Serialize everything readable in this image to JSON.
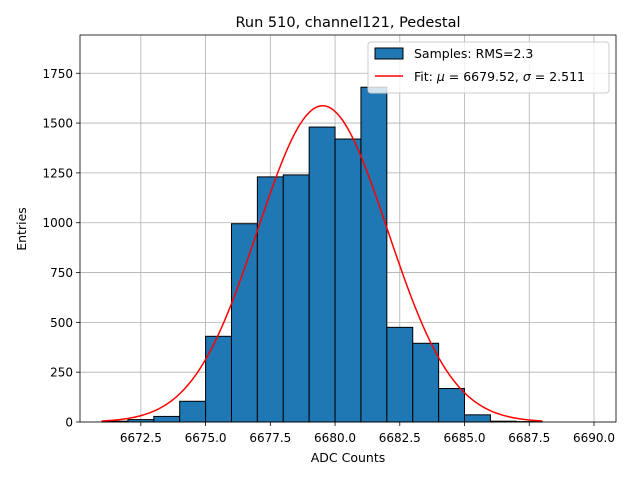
{
  "chart_data": {
    "type": "bar",
    "title": "Run 510, channel121, Pedestal",
    "xlabel": "ADC Counts",
    "ylabel": "Entries",
    "xlim": [
      6670.15,
      6690.85
    ],
    "ylim": [
      0,
      1942
    ],
    "x_ticks": [
      6672.5,
      6675.0,
      6677.5,
      6680.0,
      6682.5,
      6685.0,
      6687.5,
      6690.0
    ],
    "x_tick_labels": [
      "6672.5",
      "6675.0",
      "6677.5",
      "6680.0",
      "6682.5",
      "6685.0",
      "6687.5",
      "6690.0"
    ],
    "y_ticks": [
      0,
      250,
      500,
      750,
      1000,
      1250,
      1500,
      1750
    ],
    "y_tick_labels": [
      "0",
      "250",
      "500",
      "750",
      "1000",
      "1250",
      "1500",
      "1750"
    ],
    "grid": true,
    "bins": [
      {
        "left": 6671,
        "right": 6672,
        "count": 4
      },
      {
        "left": 6672,
        "right": 6673,
        "count": 12
      },
      {
        "left": 6673,
        "right": 6674,
        "count": 28
      },
      {
        "left": 6674,
        "right": 6675,
        "count": 104
      },
      {
        "left": 6675,
        "right": 6676,
        "count": 430
      },
      {
        "left": 6676,
        "right": 6677,
        "count": 995
      },
      {
        "left": 6677,
        "right": 6678,
        "count": 1230
      },
      {
        "left": 6678,
        "right": 6679,
        "count": 1240
      },
      {
        "left": 6679,
        "right": 6680,
        "count": 1480
      },
      {
        "left": 6680,
        "right": 6681,
        "count": 1420
      },
      {
        "left": 6681,
        "right": 6682,
        "count": 1680
      },
      {
        "left": 6682,
        "right": 6683,
        "count": 475
      },
      {
        "left": 6683,
        "right": 6684,
        "count": 395
      },
      {
        "left": 6684,
        "right": 6685,
        "count": 168
      },
      {
        "left": 6685,
        "right": 6686,
        "count": 36
      },
      {
        "left": 6686,
        "right": 6687,
        "count": 4
      },
      {
        "left": 6687,
        "right": 6688,
        "count": 2
      },
      {
        "left": 6688,
        "right": 6689,
        "count": 0
      },
      {
        "left": 6689,
        "right": 6690,
        "count": 0
      }
    ],
    "fit": {
      "mu": 6679.52,
      "sigma": 2.511,
      "amplitude": 1587,
      "x_range": [
        6671,
        6688
      ]
    },
    "legend": {
      "placement": "top-right",
      "entries": [
        {
          "kind": "bar",
          "label_prefix": "Samples: RMS=",
          "label_value": "2.3"
        },
        {
          "kind": "line",
          "label_prefix": "Fit: ",
          "mu_symbol": "μ",
          "mu_value": " = 6679.52, ",
          "sigma_symbol": "σ",
          "sigma_value": " = 2.511"
        }
      ]
    },
    "colors": {
      "bar_fill": "#1f77b4",
      "bar_edge": "#000000",
      "fit_line": "#ff0000",
      "grid": "#b0b0b0"
    }
  }
}
